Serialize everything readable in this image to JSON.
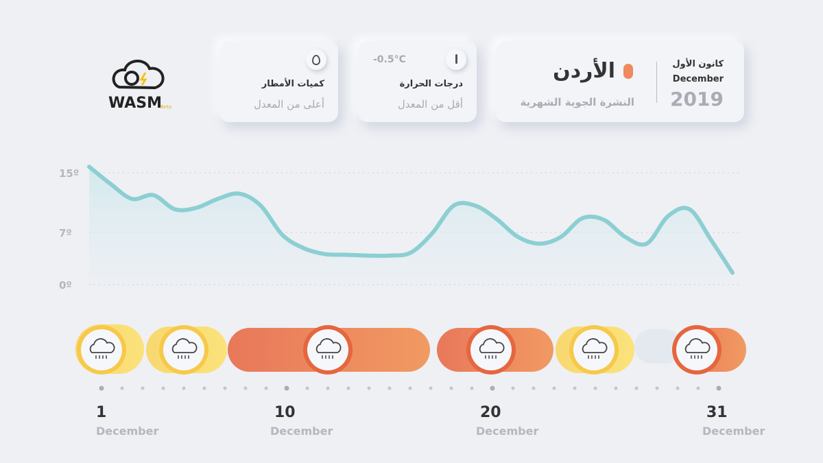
{
  "logo": {
    "name": "WASM",
    "badge": "Beta"
  },
  "header": {
    "month_ar": "كانون الأول",
    "month_en": "December",
    "year": "2019",
    "country": "الأردن",
    "subtitle": "النشرة الجوية الشهرية"
  },
  "cards": [
    {
      "title": "درجات الحرارة",
      "status": "أقل من المعدل",
      "value": "-0.5°C"
    },
    {
      "title": "كميات الأمطار",
      "status": "أعلى من المعدل"
    }
  ],
  "chart_data": {
    "type": "line",
    "color": "#8ccfd2",
    "x": [
      1,
      2,
      3,
      4,
      5,
      6,
      7,
      8,
      9,
      10,
      11,
      12,
      13,
      14,
      15,
      16,
      17,
      18,
      19,
      20,
      21,
      22,
      23,
      24,
      25,
      26,
      27,
      28,
      29,
      30,
      31
    ],
    "values": [
      15.8,
      13.5,
      11.5,
      12,
      10.1,
      10.3,
      11.5,
      12.2,
      10.6,
      6.7,
      4.9,
      4.1,
      4,
      3.9,
      3.9,
      4.3,
      6.9,
      10.6,
      10.6,
      8.8,
      6.4,
      5.5,
      6.4,
      8.9,
      8.7,
      6.4,
      5.5,
      9.2,
      10.1,
      6,
      1.6
    ],
    "xlim": [
      1,
      31
    ],
    "xticks": [
      1,
      10,
      20,
      31
    ],
    "x_tick_month": "December",
    "ylim": [
      0,
      16
    ],
    "yticks": [
      {
        "value": 0,
        "label": "0º"
      },
      {
        "value": 7,
        "label": "7º"
      },
      {
        "value": 15,
        "label": "15º"
      }
    ],
    "grid": true
  }
}
